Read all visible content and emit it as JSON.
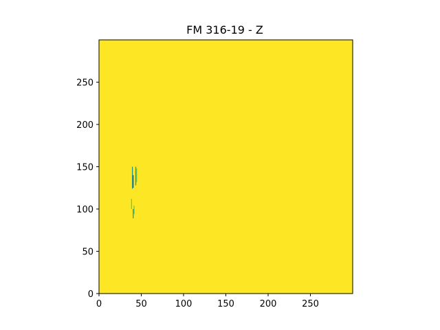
{
  "chart_data": {
    "type": "heatmap",
    "title": "FM 316-19 - Z",
    "xlabel": "",
    "ylabel": "",
    "xlim": [
      0,
      300
    ],
    "ylim": [
      0,
      300
    ],
    "x_ticks": [
      0,
      50,
      100,
      150,
      200,
      250
    ],
    "y_ticks": [
      0,
      50,
      100,
      150,
      200,
      250
    ],
    "grid": false,
    "background_value_color": "#fde725",
    "features": [
      {
        "x0": 39,
        "x1": 40,
        "y0": 124,
        "y1": 150,
        "color": "#21918c"
      },
      {
        "x0": 40,
        "x1": 41,
        "y0": 125,
        "y1": 140,
        "color": "#3b528b"
      },
      {
        "x0": 43,
        "x1": 44,
        "y0": 128,
        "y1": 150,
        "color": "#21918c"
      },
      {
        "x0": 44,
        "x1": 45,
        "y0": 132,
        "y1": 148,
        "color": "#5ec962"
      },
      {
        "x0": 38,
        "x1": 39,
        "y0": 100,
        "y1": 112,
        "color": "#5ec962"
      },
      {
        "x0": 40,
        "x1": 41,
        "y0": 89,
        "y1": 100,
        "color": "#21918c"
      },
      {
        "x0": 41,
        "x1": 42,
        "y0": 94,
        "y1": 104,
        "color": "#5ec962"
      }
    ]
  }
}
